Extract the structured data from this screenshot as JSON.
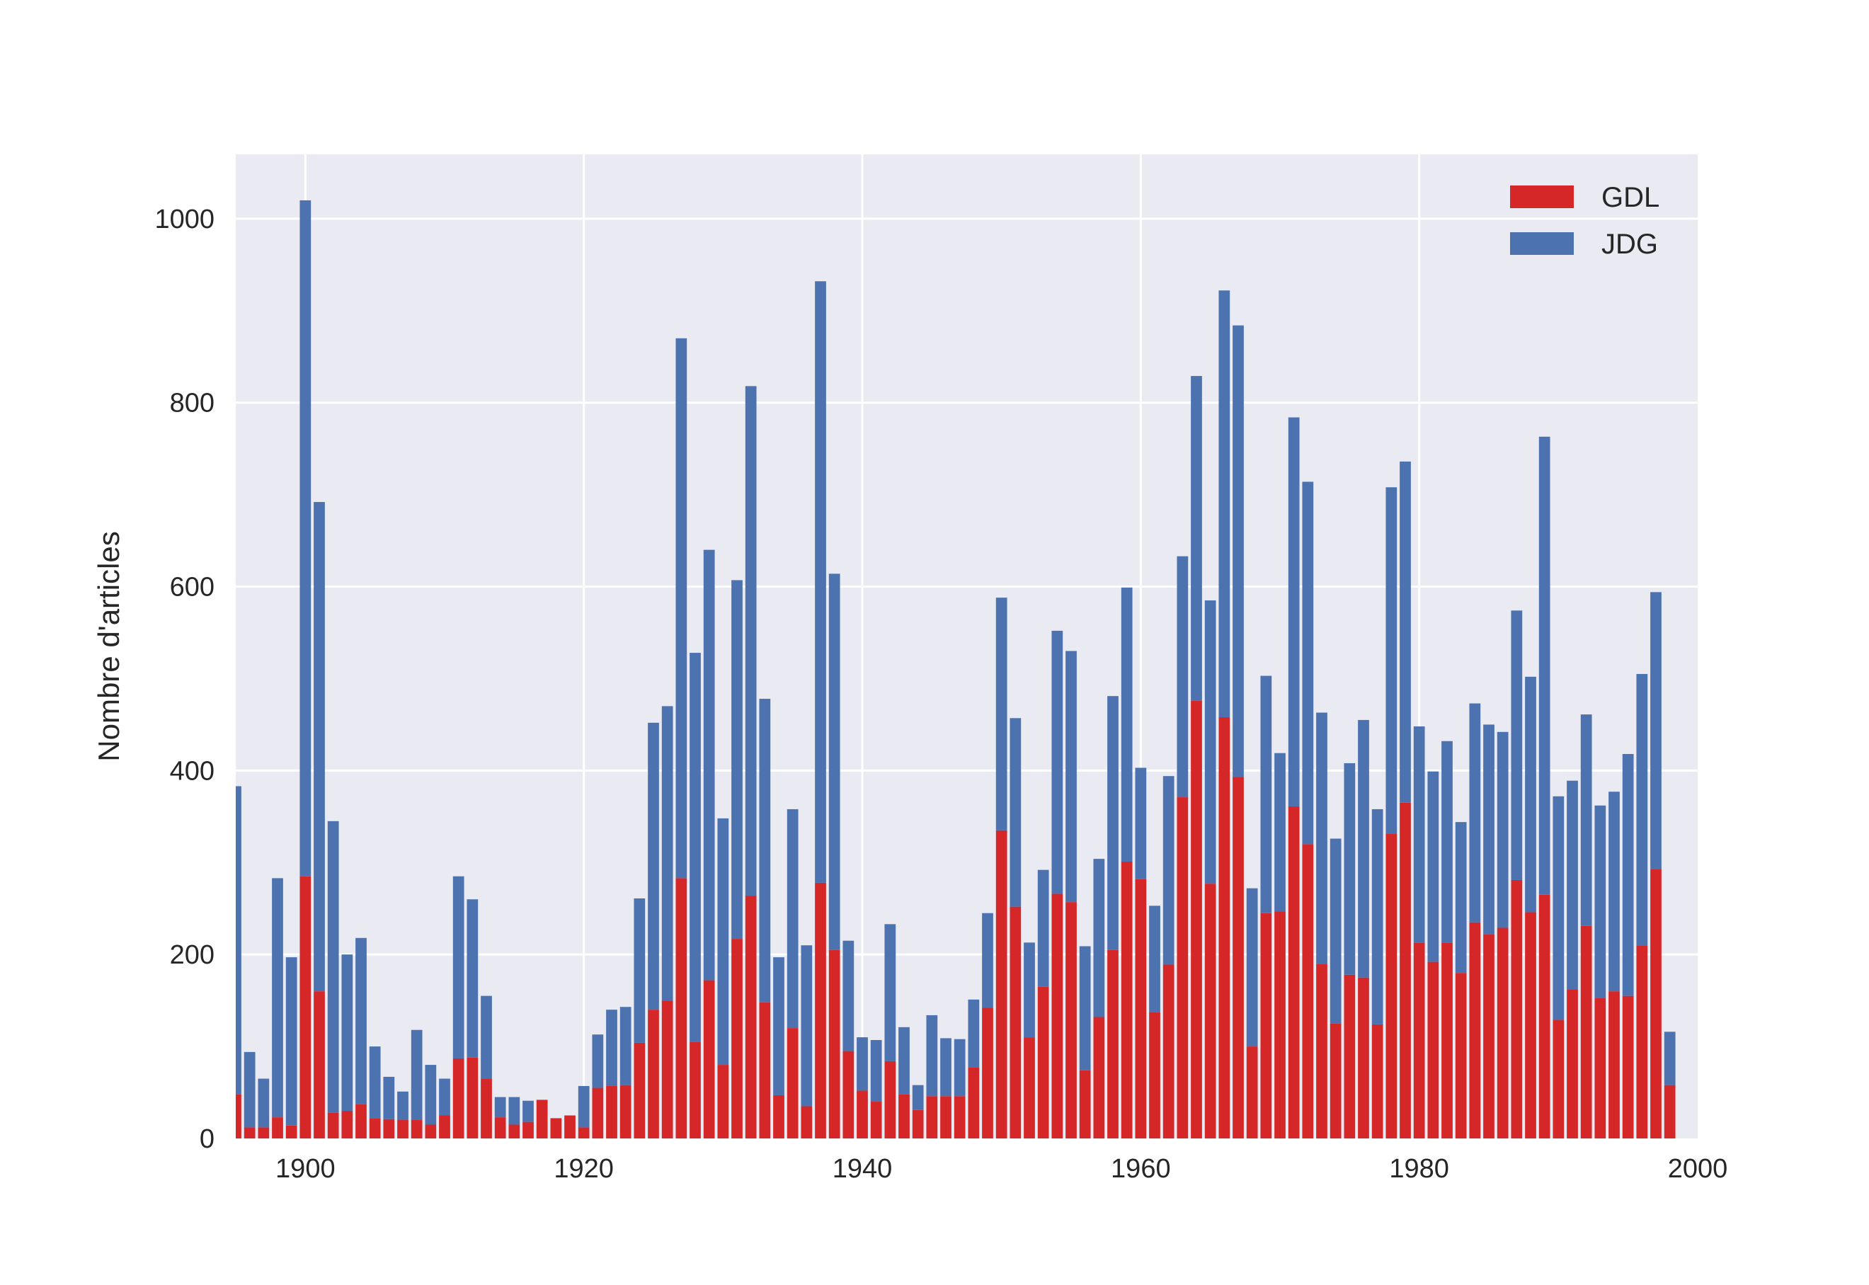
{
  "chart_data": {
    "type": "bar",
    "stacked": true,
    "ylabel": "Nombre d'articles",
    "xlabel": "",
    "title": "",
    "xlim": [
      1895,
      2000
    ],
    "ylim": [
      0,
      1070
    ],
    "xticks": [
      "1900",
      "1920",
      "1940",
      "1960",
      "1980",
      "2000"
    ],
    "yticks": [
      "0",
      "200",
      "400",
      "600",
      "800",
      "1000"
    ],
    "grid": true,
    "legend_position": "top-right",
    "colors": {
      "GDL": "#d62728",
      "JDG": "#4c72b0",
      "background": "#eaeaf2",
      "grid": "#ffffff"
    },
    "x": [
      1895,
      1896,
      1897,
      1898,
      1899,
      1900,
      1901,
      1902,
      1903,
      1904,
      1905,
      1906,
      1907,
      1908,
      1909,
      1910,
      1911,
      1912,
      1913,
      1914,
      1915,
      1916,
      1917,
      1918,
      1919,
      1920,
      1921,
      1922,
      1923,
      1924,
      1925,
      1926,
      1927,
      1928,
      1929,
      1930,
      1931,
      1932,
      1933,
      1934,
      1935,
      1936,
      1937,
      1938,
      1939,
      1940,
      1941,
      1942,
      1943,
      1944,
      1945,
      1946,
      1947,
      1948,
      1949,
      1950,
      1951,
      1952,
      1953,
      1954,
      1955,
      1956,
      1957,
      1958,
      1959,
      1960,
      1961,
      1962,
      1963,
      1964,
      1965,
      1966,
      1967,
      1968,
      1969,
      1970,
      1971,
      1972,
      1973,
      1974,
      1975,
      1976,
      1977,
      1978,
      1979,
      1980,
      1981,
      1982,
      1983,
      1984,
      1985,
      1986,
      1987,
      1988,
      1989,
      1990,
      1991,
      1992,
      1993,
      1994,
      1995,
      1996,
      1997,
      1998
    ],
    "series": [
      {
        "name": "GDL",
        "values": [
          48,
          12,
          12,
          23,
          14,
          285,
          160,
          28,
          30,
          37,
          22,
          21,
          20,
          20,
          15,
          25,
          87,
          88,
          65,
          23,
          15,
          18,
          42,
          22,
          25,
          12,
          55,
          57,
          58,
          104,
          140,
          150,
          283,
          105,
          172,
          80,
          217,
          264,
          148,
          47,
          120,
          35,
          278,
          205,
          95,
          52,
          40,
          84,
          48,
          31,
          46,
          46,
          46,
          77,
          142,
          335,
          252,
          110,
          165,
          266,
          257,
          74,
          132,
          205,
          301,
          282,
          137,
          189,
          371,
          476,
          277,
          458,
          393,
          100,
          245,
          247,
          361,
          320,
          190,
          125,
          178,
          175,
          124,
          331,
          365,
          213,
          192,
          213,
          180,
          235,
          222,
          229,
          281,
          246,
          265,
          129,
          162,
          231,
          153,
          160,
          155,
          210,
          293,
          58
        ]
      },
      {
        "name": "JDG",
        "values": [
          335,
          82,
          53,
          260,
          183,
          735,
          532,
          317,
          170,
          181,
          78,
          46,
          31,
          98,
          65,
          40,
          198,
          172,
          90,
          22,
          30,
          23,
          0,
          0,
          0,
          45,
          58,
          83,
          85,
          157,
          312,
          320,
          587,
          423,
          468,
          268,
          390,
          554,
          330,
          150,
          238,
          175,
          654,
          409,
          120,
          58,
          67,
          149,
          73,
          27,
          88,
          63,
          62,
          74,
          103,
          253,
          205,
          103,
          127,
          286,
          273,
          135,
          172,
          276,
          298,
          121,
          116,
          205,
          262,
          353,
          308,
          464,
          491,
          172,
          258,
          172,
          423,
          394,
          273,
          201,
          230,
          280,
          234,
          377,
          371,
          235,
          207,
          219,
          164,
          238,
          228,
          213,
          293,
          256,
          498,
          243,
          227,
          230,
          209,
          217,
          263,
          295,
          301,
          58
        ]
      }
    ]
  }
}
